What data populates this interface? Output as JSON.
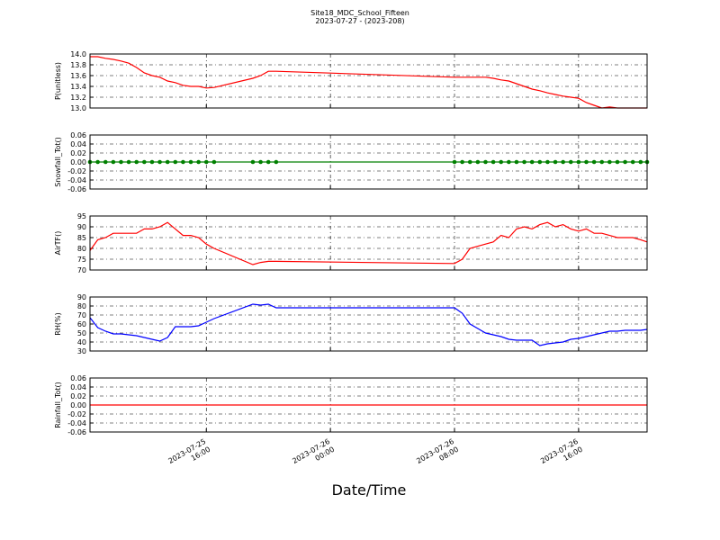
{
  "title": "Site18_MDC_School_Fifteen",
  "subtitle": "2023-07-27 - (2023-208)",
  "xlabel": "Date/Time",
  "x": [
    "2023-07-25 08:30",
    "2023-07-25 09:00",
    "2023-07-25 09:30",
    "2023-07-25 10:00",
    "2023-07-25 10:30",
    "2023-07-25 11:00",
    "2023-07-25 11:30",
    "2023-07-25 12:00",
    "2023-07-25 12:30",
    "2023-07-25 13:00",
    "2023-07-25 13:30",
    "2023-07-25 14:00",
    "2023-07-25 14:30",
    "2023-07-25 15:00",
    "2023-07-25 15:30",
    "2023-07-25 16:00",
    "2023-07-25 16:30",
    "2023-07-25 19:00",
    "2023-07-25 19:30",
    "2023-07-25 20:00",
    "2023-07-25 20:30",
    "2023-07-26 08:00",
    "2023-07-26 08:30",
    "2023-07-26 09:00",
    "2023-07-26 09:30",
    "2023-07-26 10:00",
    "2023-07-26 10:30",
    "2023-07-26 11:00",
    "2023-07-26 11:30",
    "2023-07-26 12:00",
    "2023-07-26 12:30",
    "2023-07-26 13:00",
    "2023-07-26 13:30",
    "2023-07-26 14:00",
    "2023-07-26 14:30",
    "2023-07-26 15:00",
    "2023-07-26 15:30",
    "2023-07-26 16:00",
    "2023-07-26 16:30",
    "2023-07-26 17:00",
    "2023-07-26 17:30",
    "2023-07-26 18:00",
    "2023-07-26 18:30",
    "2023-07-26 19:00",
    "2023-07-26 19:30",
    "2023-07-26 20:00",
    "2023-07-26 20:25"
  ],
  "xlim": [
    "2023-07-25 08:30",
    "2023-07-26 20:25"
  ],
  "xticks": [
    {
      "value": "2023-07-25 16:00",
      "label": "2023-07-25\n16:00"
    },
    {
      "value": "2023-07-26 00:00",
      "label": "2023-07-26\n00:00"
    },
    {
      "value": "2023-07-26 08:00",
      "label": "2023-07-26\n08:00"
    },
    {
      "value": "2023-07-26 16:00",
      "label": "2023-07-26\n16:00"
    }
  ],
  "chart_data": [
    {
      "type": "line",
      "ylabel": "P(unitless)",
      "color": "#ff0000",
      "grid": true,
      "ylim": [
        13.0,
        14.0
      ],
      "yticks": [
        {
          "value": 13.0,
          "label": "13.0"
        },
        13.2,
        13.4,
        13.6,
        13.8,
        {
          "value": 14.0,
          "label": "14.0"
        }
      ],
      "values": [
        13.95,
        13.95,
        13.92,
        13.9,
        13.87,
        13.83,
        13.75,
        13.65,
        13.6,
        13.57,
        13.5,
        13.47,
        13.42,
        13.4,
        13.4,
        13.37,
        13.38,
        13.55,
        13.6,
        13.68,
        13.68,
        13.57,
        13.57,
        13.57,
        13.57,
        13.57,
        13.55,
        13.52,
        13.5,
        13.45,
        13.4,
        13.35,
        13.32,
        13.28,
        13.25,
        13.22,
        13.2,
        13.18,
        13.1,
        13.05,
        13.0,
        13.02,
        13.0,
        13.0,
        13.0,
        13.0,
        13.0
      ]
    },
    {
      "type": "line",
      "ylabel": "Snowfall_Tot()",
      "color": "#008000",
      "markers": true,
      "grid": true,
      "ylim": [
        -0.06,
        0.06
      ],
      "yticks": [
        -0.06,
        -0.04,
        -0.02,
        {
          "value": 0,
          "label": "0.00"
        },
        0.02,
        0.04,
        0.06
      ],
      "values": [
        0,
        0,
        0,
        0,
        0,
        0,
        0,
        0,
        0,
        0,
        0,
        0,
        0,
        0,
        0,
        0,
        0,
        0,
        0,
        0,
        0,
        0,
        0,
        0,
        0,
        0,
        0,
        0,
        0,
        0,
        0,
        0,
        0,
        0,
        0,
        0,
        0,
        0,
        0,
        0,
        0,
        0,
        0,
        0,
        0,
        0,
        0
      ]
    },
    {
      "type": "line",
      "ylabel": "AirTF()",
      "color": "#ff0000",
      "grid": true,
      "ylim": [
        70,
        95
      ],
      "yticks": [
        70,
        75,
        80,
        85,
        90,
        95
      ],
      "values": [
        79,
        84,
        85,
        87,
        87,
        87,
        87,
        89,
        89,
        90,
        92,
        89,
        86,
        86,
        85,
        82,
        80,
        72.5,
        73.5,
        74,
        74,
        73,
        75,
        80,
        81,
        82,
        83,
        86,
        85,
        89,
        90,
        89,
        91,
        92,
        90,
        91,
        89,
        88,
        89,
        87,
        87,
        86,
        85,
        85,
        85,
        84,
        83
      ]
    },
    {
      "type": "line",
      "ylabel": "RH(%)",
      "color": "#0000ff",
      "grid": true,
      "ylim": [
        30,
        90
      ],
      "yticks": [
        30,
        40,
        50,
        60,
        70,
        80,
        90
      ],
      "values": [
        67,
        56,
        52,
        49,
        49,
        48,
        47,
        45,
        43,
        41,
        45,
        57,
        57,
        57,
        58,
        62,
        66,
        82,
        81,
        82,
        78,
        78,
        72,
        60,
        55,
        50,
        48,
        46,
        43,
        42,
        42,
        42,
        36,
        38,
        39,
        40,
        43,
        44,
        46,
        48,
        50,
        52,
        52,
        53,
        53,
        53,
        54
      ]
    },
    {
      "type": "line",
      "ylabel": "Rainfall_Tot()",
      "color": "#ff0000",
      "grid": true,
      "ylim": [
        -0.06,
        0.06
      ],
      "yticks": [
        -0.06,
        -0.04,
        -0.02,
        {
          "value": 0,
          "label": "0.00"
        },
        0.02,
        0.04,
        0.06
      ],
      "values": [
        0,
        0,
        0,
        0,
        0,
        0,
        0,
        0,
        0,
        0,
        0,
        0,
        0,
        0,
        0,
        0,
        0,
        0,
        0,
        0,
        0,
        0,
        0,
        0,
        0,
        0,
        0,
        0,
        0,
        0,
        0,
        0,
        0,
        0,
        0,
        0,
        0,
        0,
        0,
        0,
        0,
        0,
        0,
        0,
        0,
        0,
        0
      ]
    }
  ]
}
